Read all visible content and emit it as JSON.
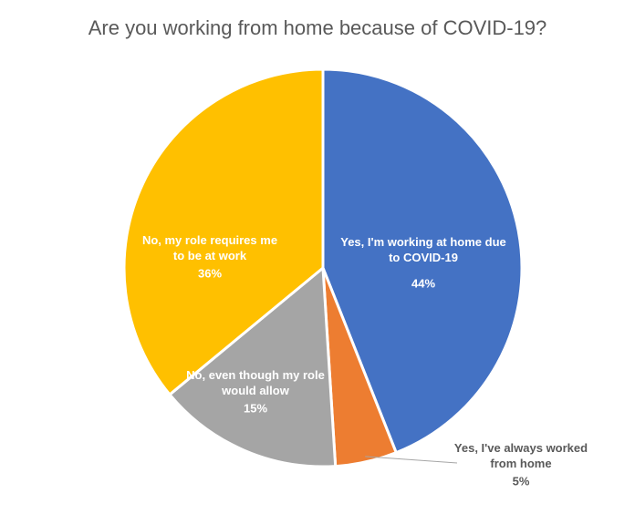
{
  "chart_data": {
    "type": "pie",
    "title": "Are you working from home because of COVID-19?",
    "categories": [
      "Yes, I'm working at home due to COVID-19",
      "Yes, I've always worked from home",
      "No, even though my role would allow",
      "No, my role requires me to be at work"
    ],
    "values": [
      44,
      5,
      15,
      36
    ],
    "value_labels": [
      "44%",
      "5%",
      "15%",
      "36%"
    ],
    "colors": [
      "#4472c4",
      "#ed7d31",
      "#a5a5a5",
      "#ffc000"
    ]
  }
}
